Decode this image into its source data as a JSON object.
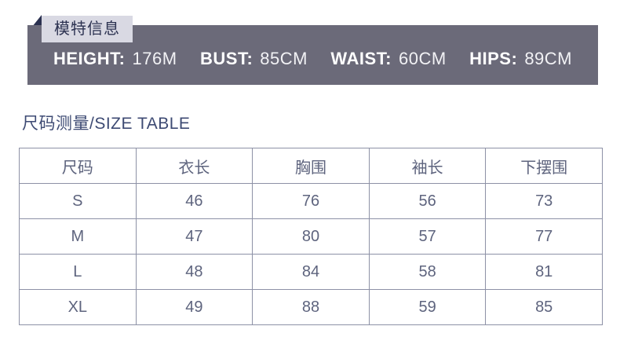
{
  "model_info": {
    "badge_label": "模特信息",
    "stats": [
      {
        "label": "HEIGHT:",
        "value": "176M"
      },
      {
        "label": "BUST:",
        "value": "85CM"
      },
      {
        "label": "WAIST:",
        "value": "60CM"
      },
      {
        "label": "HIPS:",
        "value": "89CM"
      }
    ]
  },
  "size_section": {
    "title": "尺码测量/SIZE TABLE"
  },
  "size_table": {
    "columns": [
      "尺码",
      "衣长",
      "胸围",
      "袖长",
      "下摆围"
    ],
    "rows": [
      [
        "S",
        "46",
        "76",
        "56",
        "73"
      ],
      [
        "M",
        "47",
        "80",
        "57",
        "77"
      ],
      [
        "L",
        "48",
        "84",
        "58",
        "81"
      ],
      [
        "XL",
        "49",
        "88",
        "59",
        "85"
      ]
    ]
  },
  "colors": {
    "banner_background": "#6b6a79",
    "badge_background": "#d9d9e3",
    "badge_text": "#2d3352",
    "ribbon_fold": "#2b3150",
    "banner_text": "#ffffff",
    "title_text": "#3d4a73",
    "table_border": "#8d91a6",
    "table_text": "#5e647e"
  }
}
